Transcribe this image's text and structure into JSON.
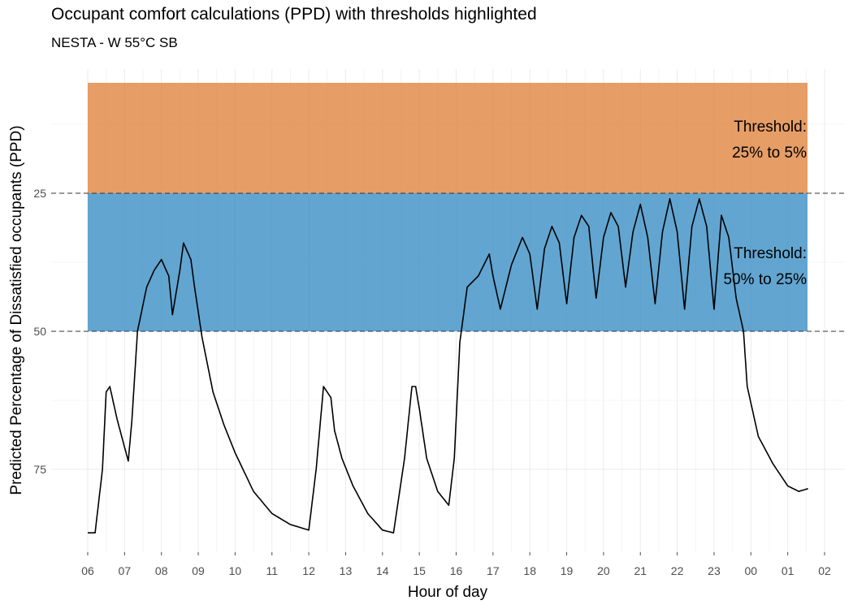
{
  "chart_data": {
    "type": "line",
    "title": "Occupant comfort calculations (PPD) with thresholds highlighted",
    "subtitle": "NESTA - W 55°C SB",
    "xlabel": "Hour of day",
    "ylabel": "Predicted Percentage of Dissatisfied occupants (PPD)",
    "y_reversed": true,
    "ylim": [
      87,
      5
    ],
    "y_ticks": [
      "25",
      "50",
      "75"
    ],
    "x_ticks": [
      "06",
      "07",
      "08",
      "09",
      "10",
      "11",
      "12",
      "13",
      "14",
      "15",
      "16",
      "17",
      "18",
      "19",
      "20",
      "21",
      "22",
      "23",
      "00",
      "01",
      "02"
    ],
    "grid": true,
    "bands": [
      {
        "name": "Threshold: 25% to 5%",
        "from": 5,
        "to": 25,
        "color": "#E08540"
      },
      {
        "name": "Threshold: 50% to 25%",
        "from": 25,
        "to": 50,
        "color": "#3B8FC6"
      }
    ],
    "threshold_lines": [
      25,
      50
    ],
    "annotations": [
      {
        "band": "upper",
        "line1": "Threshold:",
        "line2": "25% to 5%"
      },
      {
        "band": "lower",
        "line1": "Threshold:",
        "line2": "50% to 25%"
      }
    ],
    "series": [
      {
        "color": "#000000",
        "x_hours_from_06": [
          0,
          0.2,
          0.4,
          0.5,
          0.6,
          0.8,
          1.0,
          1.1,
          1.2,
          1.35,
          1.6,
          1.8,
          2.0,
          2.2,
          2.3,
          2.5,
          2.6,
          2.8,
          2.9,
          3.1,
          3.4,
          3.7,
          4.0,
          4.5,
          5.0,
          5.5,
          6.0,
          6.2,
          6.4,
          6.6,
          6.7,
          6.9,
          7.2,
          7.6,
          8.0,
          8.3,
          8.6,
          8.8,
          8.9,
          9.0,
          9.2,
          9.5,
          9.8,
          9.95,
          10.1,
          10.3,
          10.6,
          10.9,
          11.0,
          11.2,
          11.5,
          11.8,
          12.0,
          12.2,
          12.4,
          12.6,
          12.8,
          13.0,
          13.2,
          13.4,
          13.6,
          13.8,
          14.0,
          14.2,
          14.4,
          14.6,
          14.8,
          15.0,
          15.2,
          15.4,
          15.6,
          15.8,
          16.0,
          16.2,
          16.4,
          16.6,
          16.8,
          17.0,
          17.2,
          17.4,
          17.6,
          17.8,
          17.9,
          18.2,
          18.6,
          19.0,
          19.3,
          19.55
        ],
        "y": [
          86.5,
          86.5,
          75,
          61,
          60,
          66,
          71,
          73.5,
          66,
          50,
          42,
          39,
          37,
          40,
          47,
          39,
          34,
          37,
          42,
          51,
          61,
          67,
          72,
          79,
          83,
          85,
          86,
          75,
          60,
          62,
          68,
          73,
          78,
          83,
          86,
          86.5,
          73,
          60,
          60,
          64,
          73,
          79,
          81.5,
          73,
          52,
          42,
          40,
          36,
          40,
          46,
          38,
          33,
          36,
          46,
          35,
          31,
          34,
          45,
          33,
          29,
          31,
          44,
          33,
          28.5,
          31,
          42,
          32,
          27,
          33,
          45,
          32,
          26,
          32,
          46,
          31,
          26,
          31,
          46,
          29,
          33,
          44,
          50,
          60,
          69,
          74,
          78,
          79,
          78.5
        ]
      }
    ]
  }
}
